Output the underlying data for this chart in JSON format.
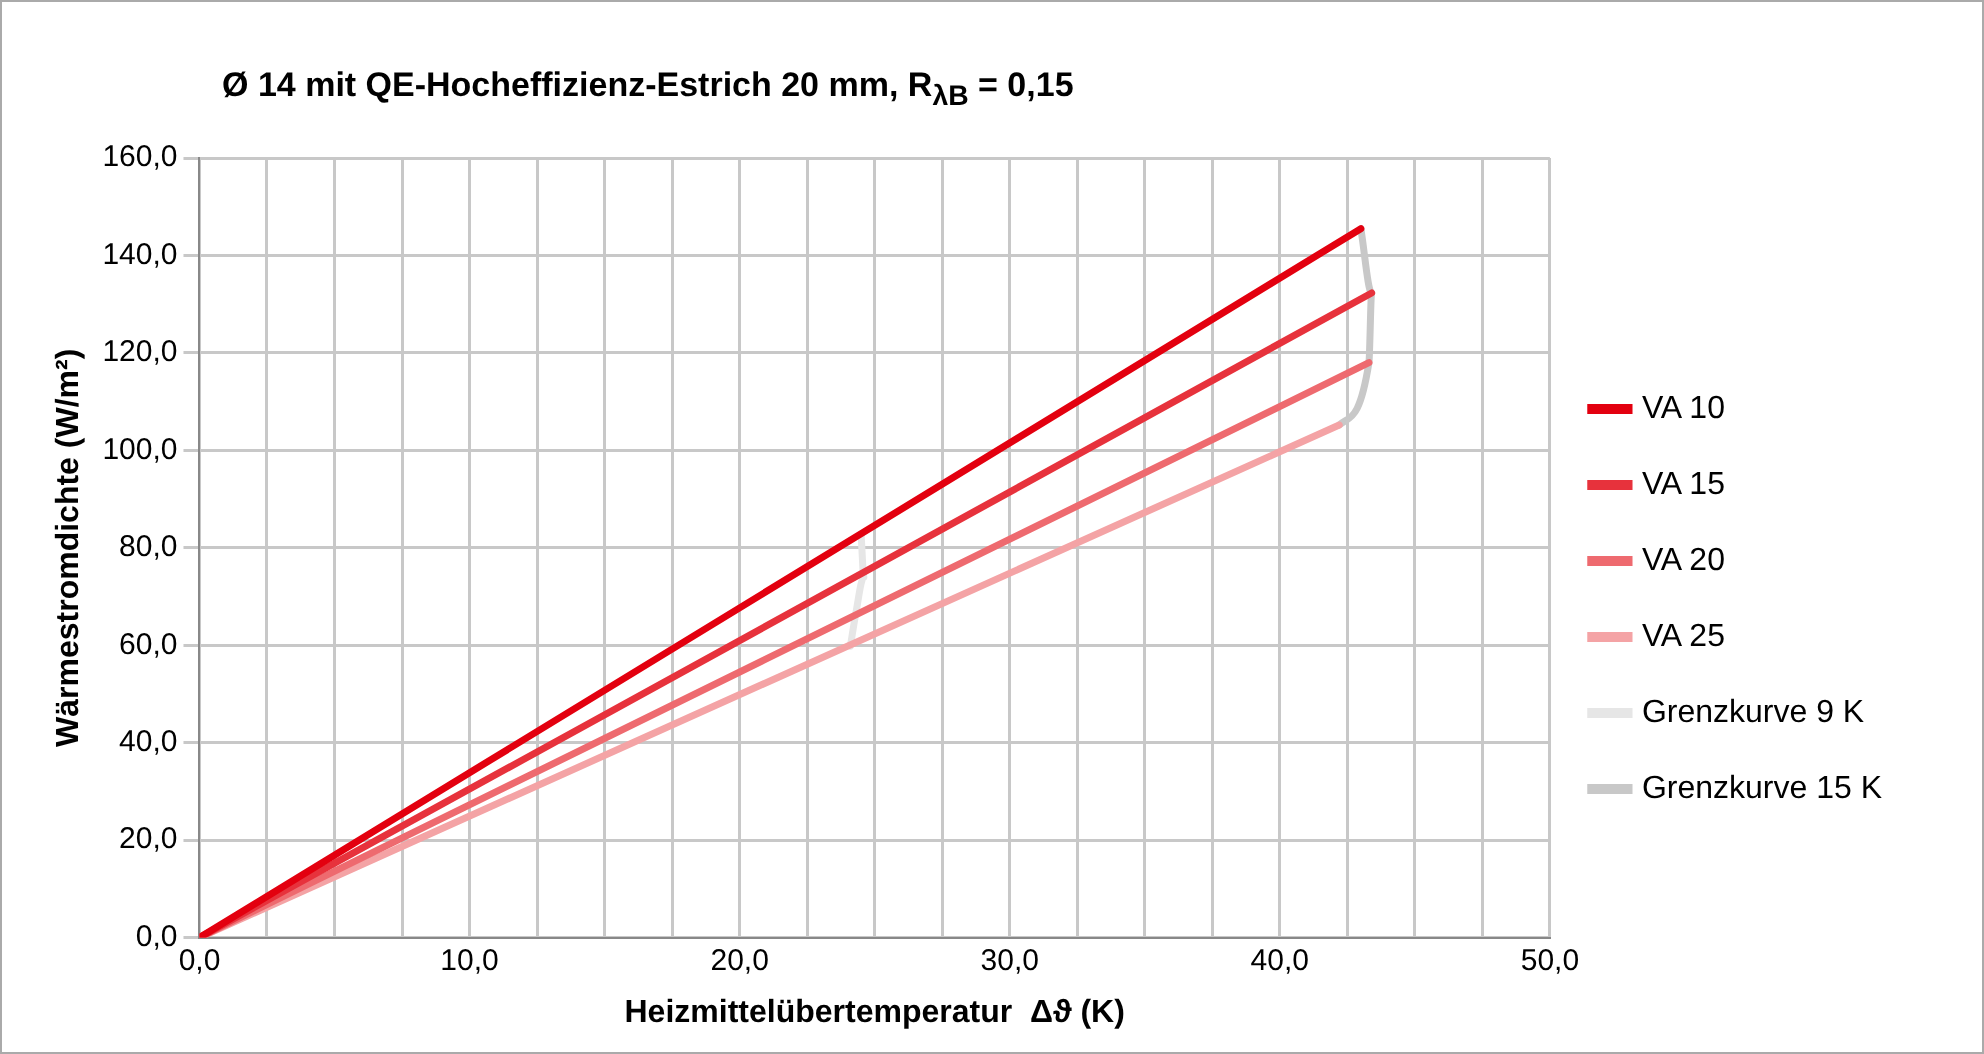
{
  "chart_data": {
    "type": "line",
    "title": "Ø 14 mit QE-Hocheffizienz-Estrich 20 mm, R$_{λB}$ = 0,15",
    "xlabel": "Heizmittelübertemperatur  Δϑ (K)",
    "ylabel": "Wärmestromdichte (W/m²)",
    "series": [
      {
        "name": "VA 10",
        "color": "#e3000f",
        "x": [
          0,
          43.0
        ],
        "values": [
          0,
          145.5
        ]
      },
      {
        "name": "VA 15",
        "color": "#e7323c",
        "x": [
          0,
          43.4
        ],
        "values": [
          0,
          132.3
        ]
      },
      {
        "name": "VA 20",
        "color": "#ee6a6f",
        "x": [
          0,
          43.3
        ],
        "values": [
          0,
          118
        ]
      },
      {
        "name": "VA 25",
        "color": "#f4a3a5",
        "x": [
          0,
          42.2
        ],
        "values": [
          0,
          105.2
        ]
      },
      {
        "name": "Grenzkurve 9 K",
        "color": "#e6e6e6",
        "x": [
          24.5,
          24.6,
          24.3,
          24.1
        ],
        "values": [
          82.5,
          74,
          66.5,
          59.8
        ]
      },
      {
        "name": "Grenzkurve 15 K",
        "color": "#c8c8c8",
        "x": [
          43.0,
          43.4,
          43.3,
          42.2
        ],
        "values": [
          145.5,
          132.3,
          118,
          105.2
        ]
      }
    ],
    "xlim": [
      0,
      50
    ],
    "xticks": [
      {
        "value": 0,
        "label": "0,0"
      },
      {
        "value": 2.5,
        "label": null
      },
      {
        "value": 5,
        "label": null
      },
      {
        "value": 7.5,
        "label": null
      },
      {
        "value": 10,
        "label": "10,0"
      },
      {
        "value": 12.5,
        "label": null
      },
      {
        "value": 15,
        "label": null
      },
      {
        "value": 17.5,
        "label": null
      },
      {
        "value": 20,
        "label": "20,0"
      },
      {
        "value": 22.5,
        "label": null
      },
      {
        "value": 25,
        "label": null
      },
      {
        "value": 27.5,
        "label": null
      },
      {
        "value": 30,
        "label": "30,0"
      },
      {
        "value": 32.5,
        "label": null
      },
      {
        "value": 35,
        "label": null
      },
      {
        "value": 37.5,
        "label": null
      },
      {
        "value": 40,
        "label": "40,0"
      },
      {
        "value": 42.5,
        "label": null
      },
      {
        "value": 45,
        "label": null
      },
      {
        "value": 47.5,
        "label": null
      },
      {
        "value": 50,
        "label": "50,0"
      }
    ],
    "ylim": [
      0,
      160
    ],
    "yticks": [
      {
        "value": 0,
        "label": "0,0"
      },
      {
        "value": 20,
        "label": "20,0"
      },
      {
        "value": 40,
        "label": "40,0"
      },
      {
        "value": 60,
        "label": "60,0"
      },
      {
        "value": 80,
        "label": "80,0"
      },
      {
        "value": 100,
        "label": "100,0"
      },
      {
        "value": 120,
        "label": "120,0"
      },
      {
        "value": 140,
        "label": "140,0"
      },
      {
        "value": 160,
        "label": "160,0"
      }
    ],
    "grid": true,
    "legend": "right",
    "marker": "none",
    "line_style": "solid"
  }
}
